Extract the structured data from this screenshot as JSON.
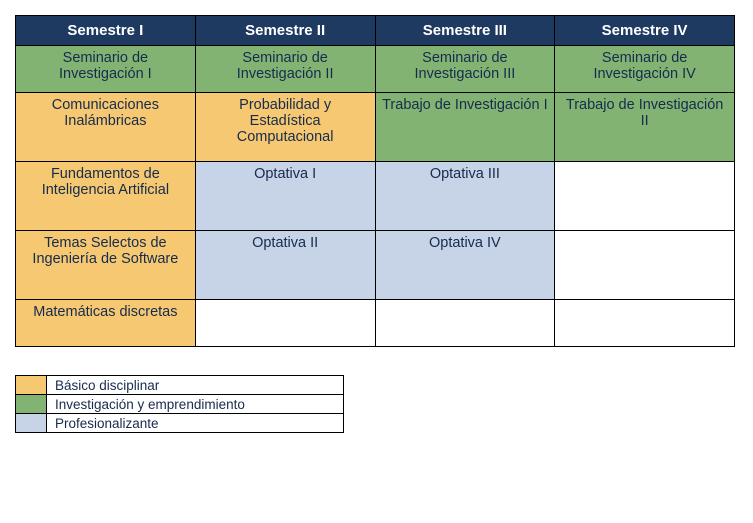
{
  "colors": {
    "header_bg": "#1f3a60",
    "header_text": "#ffffff",
    "basic": "#f5c871",
    "research": "#82b373",
    "professional": "#c7d4e8",
    "empty": "#ffffff",
    "cell_text": "#172b4d"
  },
  "headers": [
    "Semestre I",
    "Semestre II",
    "Semestre III",
    "Semestre IV"
  ],
  "rows": [
    {
      "short": true,
      "cells": [
        {
          "text": "Seminario de Investigación I",
          "cat": "research"
        },
        {
          "text": "Seminario de Investigación II",
          "cat": "research"
        },
        {
          "text": "Seminario de Investigación III",
          "cat": "research"
        },
        {
          "text": "Seminario de Investigación IV",
          "cat": "research"
        }
      ]
    },
    {
      "cells": [
        {
          "text": "Comunicaciones Inalámbricas",
          "cat": "basic"
        },
        {
          "text": "Probabilidad y Estadística Computacional",
          "cat": "basic"
        },
        {
          "text": "Trabajo de Investigación I",
          "cat": "research"
        },
        {
          "text": "Trabajo de Investigación II",
          "cat": "research"
        }
      ]
    },
    {
      "cells": [
        {
          "text": "Fundamentos de Inteligencia Artificial",
          "cat": "basic"
        },
        {
          "text": "Optativa I",
          "cat": "professional"
        },
        {
          "text": "Optativa III",
          "cat": "professional"
        },
        {
          "text": "",
          "cat": "empty"
        }
      ]
    },
    {
      "cells": [
        {
          "text": "Temas Selectos de Ingeniería de Software",
          "cat": "basic"
        },
        {
          "text": "Optativa II",
          "cat": "professional"
        },
        {
          "text": "Optativa IV",
          "cat": "professional"
        },
        {
          "text": "",
          "cat": "empty"
        }
      ]
    },
    {
      "short": true,
      "cells": [
        {
          "text": "Matemáticas discretas",
          "cat": "basic"
        },
        {
          "text": "",
          "cat": "empty"
        },
        {
          "text": "",
          "cat": "empty"
        },
        {
          "text": "",
          "cat": "empty"
        }
      ]
    }
  ],
  "legend": [
    {
      "label": "Básico disciplinar",
      "cat": "basic"
    },
    {
      "label": "Investigación y emprendimiento",
      "cat": "research"
    },
    {
      "label": "Profesionalizante",
      "cat": "professional"
    }
  ]
}
